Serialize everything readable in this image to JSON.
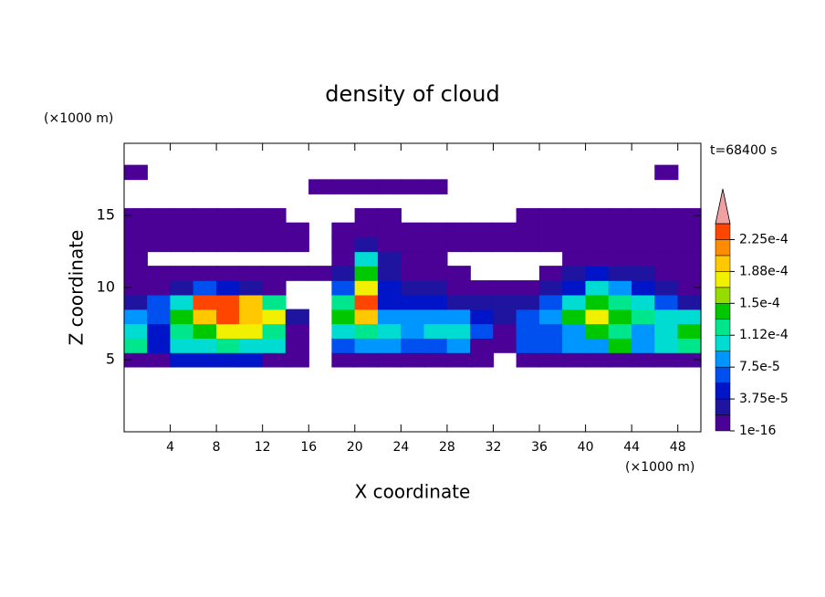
{
  "chart_data": {
    "type": "heatmap",
    "title": "density of cloud",
    "xlabel": "X coordinate",
    "ylabel": "Z coordinate",
    "xunit": "(×1000 m)",
    "yunit": "(×1000 m)",
    "annotation": "t=68400 s",
    "xlim": [
      0,
      50
    ],
    "ylim": [
      0,
      20
    ],
    "xticks": [
      4,
      8,
      12,
      16,
      20,
      24,
      28,
      32,
      36,
      40,
      44,
      48
    ],
    "yticks": [
      5,
      10,
      15
    ],
    "x": [
      1,
      3,
      5,
      7,
      9,
      11,
      13,
      15,
      17,
      19,
      21,
      23,
      25,
      27,
      29,
      31,
      33,
      35,
      37,
      39,
      41,
      43,
      45,
      47,
      49
    ],
    "y": [
      5,
      6,
      7,
      8,
      9,
      10,
      11,
      12,
      13,
      14,
      15,
      16,
      17,
      18
    ],
    "z": [
      [
        1e-05,
        1e-05,
        5e-05,
        5e-05,
        5e-05,
        5e-05,
        1e-05,
        1e-05,
        null,
        1e-05,
        1e-05,
        1e-05,
        1e-05,
        1e-05,
        1e-05,
        1e-05,
        null,
        1e-05,
        1e-05,
        1e-05,
        1e-05,
        1e-05,
        1e-05,
        1e-05,
        1e-05
      ],
      [
        0.00012,
        5e-05,
        0.000105,
        0.000105,
        0.00012,
        0.000105,
        0.000105,
        1e-05,
        null,
        7e-05,
        9e-05,
        9e-05,
        7e-05,
        7e-05,
        9e-05,
        1e-05,
        1e-05,
        7e-05,
        7e-05,
        9e-05,
        9e-05,
        0.00014,
        9e-05,
        0.000105,
        0.00012
      ],
      [
        0.000105,
        5e-05,
        0.00012,
        0.00014,
        0.00018,
        0.00018,
        0.00012,
        1e-05,
        null,
        0.000105,
        0.00012,
        0.000105,
        9e-05,
        0.000105,
        0.000105,
        7e-05,
        1e-05,
        7e-05,
        7e-05,
        9e-05,
        0.00014,
        0.00012,
        9e-05,
        0.000105,
        0.00014
      ],
      [
        9e-05,
        7e-05,
        0.00014,
        0.0002,
        0.00023,
        0.0002,
        0.00018,
        3e-05,
        null,
        0.00014,
        0.0002,
        9e-05,
        9e-05,
        9e-05,
        9e-05,
        5e-05,
        3e-05,
        7e-05,
        9e-05,
        0.00014,
        0.00018,
        0.00014,
        0.00012,
        0.000105,
        0.000105
      ],
      [
        3e-05,
        7e-05,
        0.000105,
        0.00023,
        0.00023,
        0.0002,
        0.00012,
        null,
        null,
        0.00012,
        0.00023,
        5e-05,
        5e-05,
        5e-05,
        3e-05,
        3e-05,
        3e-05,
        3e-05,
        7e-05,
        0.000105,
        0.00014,
        0.00012,
        0.000105,
        7e-05,
        3e-05
      ],
      [
        1e-05,
        1e-05,
        3e-05,
        7e-05,
        5e-05,
        3e-05,
        1e-05,
        null,
        null,
        7e-05,
        0.00018,
        5e-05,
        3e-05,
        3e-05,
        1e-05,
        1e-05,
        1e-05,
        1e-05,
        3e-05,
        5e-05,
        0.000105,
        9e-05,
        5e-05,
        3e-05,
        1e-05
      ],
      [
        1e-05,
        1e-05,
        1e-05,
        1e-05,
        1e-05,
        1e-05,
        1e-05,
        1e-05,
        1e-05,
        3e-05,
        0.00014,
        3e-05,
        1e-05,
        1e-05,
        1e-05,
        null,
        null,
        null,
        1e-05,
        3e-05,
        5e-05,
        3e-05,
        3e-05,
        1e-05,
        1e-05
      ],
      [
        1e-05,
        null,
        null,
        null,
        null,
        null,
        null,
        null,
        null,
        1e-05,
        0.000105,
        3e-05,
        1e-05,
        1e-05,
        null,
        null,
        null,
        null,
        null,
        1e-05,
        1e-05,
        1e-05,
        1e-05,
        1e-05,
        1e-05
      ],
      [
        1e-05,
        1e-05,
        1e-05,
        1e-05,
        1e-05,
        1e-05,
        1e-05,
        1e-05,
        null,
        1e-05,
        3e-05,
        1e-05,
        1e-05,
        1e-05,
        1e-05,
        1e-05,
        1e-05,
        1e-05,
        1e-05,
        1e-05,
        1e-05,
        1e-05,
        1e-05,
        1e-05,
        1e-05
      ],
      [
        1e-05,
        1e-05,
        1e-05,
        1e-05,
        1e-05,
        1e-05,
        1e-05,
        1e-05,
        null,
        1e-05,
        1e-05,
        1e-05,
        1e-05,
        1e-05,
        1e-05,
        1e-05,
        1e-05,
        1e-05,
        1e-05,
        1e-05,
        1e-05,
        1e-05,
        1e-05,
        1e-05,
        1e-05
      ],
      [
        1e-05,
        1e-05,
        1e-05,
        1e-05,
        1e-05,
        1e-05,
        1e-05,
        null,
        null,
        null,
        1e-05,
        1e-05,
        null,
        null,
        null,
        null,
        null,
        1e-05,
        1e-05,
        1e-05,
        1e-05,
        1e-05,
        1e-05,
        1e-05,
        1e-05
      ],
      [
        null,
        null,
        null,
        null,
        null,
        null,
        null,
        null,
        null,
        null,
        null,
        null,
        null,
        null,
        null,
        null,
        null,
        null,
        null,
        null,
        null,
        null,
        null,
        null,
        null
      ],
      [
        null,
        null,
        null,
        null,
        null,
        null,
        null,
        null,
        1e-05,
        1e-05,
        1e-05,
        1e-05,
        1e-05,
        1e-05,
        null,
        null,
        null,
        null,
        null,
        null,
        null,
        null,
        null,
        null,
        null
      ],
      [
        1e-05,
        null,
        null,
        null,
        null,
        null,
        null,
        null,
        null,
        null,
        null,
        null,
        null,
        null,
        null,
        null,
        null,
        null,
        null,
        null,
        null,
        null,
        null,
        1e-05,
        null
      ]
    ],
    "colorbar": {
      "levels": [
        1e-16,
        1.875e-05,
        3.75e-05,
        5.625e-05,
        7.5e-05,
        9.375e-05,
        0.0001125,
        0.00013125,
        0.00015,
        0.00016875,
        0.0001875,
        0.00020625,
        0.000225,
        0.00024375
      ],
      "colors": [
        "#4b0096",
        "#1e14a0",
        "#0014c8",
        "#0050f0",
        "#0096ff",
        "#00dcd2",
        "#00e68c",
        "#00c800",
        "#96dc00",
        "#f0f000",
        "#ffc800",
        "#ff8c00",
        "#ff4600"
      ],
      "over_color": "#f0a0a0",
      "ticks": [
        {
          "value": 1e-16,
          "label": "1e-16"
        },
        {
          "value": 3.75e-05,
          "label": "3.75e-5"
        },
        {
          "value": 7.5e-05,
          "label": "7.5e-5"
        },
        {
          "value": 0.0001125,
          "label": "1.12e-4"
        },
        {
          "value": 0.00015,
          "label": "1.5e-4"
        },
        {
          "value": 0.0001875,
          "label": "1.88e-4"
        },
        {
          "value": 0.000225,
          "label": "2.25e-4"
        }
      ]
    }
  }
}
